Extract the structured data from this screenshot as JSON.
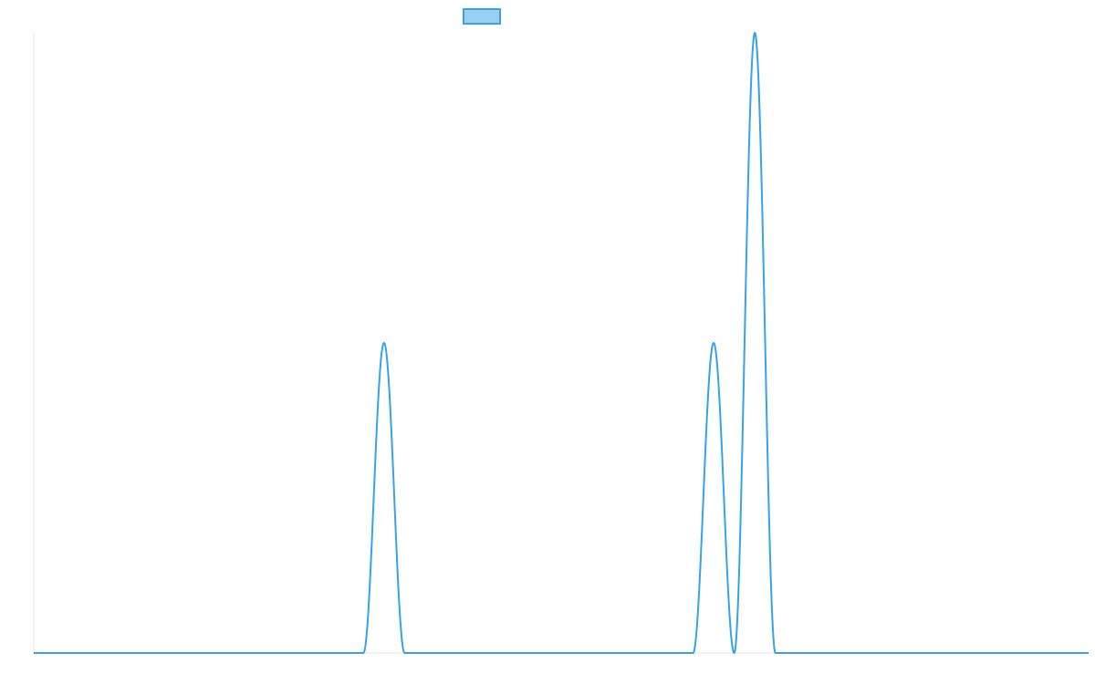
{
  "chart_data": {
    "type": "line",
    "title": "",
    "xlabel": "",
    "ylabel": "",
    "xlim": [
      0,
      64
    ],
    "ylim": [
      0,
      2
    ],
    "grid": false,
    "legend": {
      "position": "top-center"
    },
    "series": [
      {
        "name": "",
        "color": "#36a2eb",
        "fill": "#9ad0f5",
        "x": [
          0,
          20,
          21.25,
          22.5,
          40,
          41.25,
          42.5,
          43.75,
          45,
          64
        ],
        "y": [
          0,
          0,
          1,
          0,
          0,
          1,
          0,
          2,
          0,
          0
        ],
        "smooth": true
      }
    ],
    "axis_color": "#e6e6e6"
  }
}
